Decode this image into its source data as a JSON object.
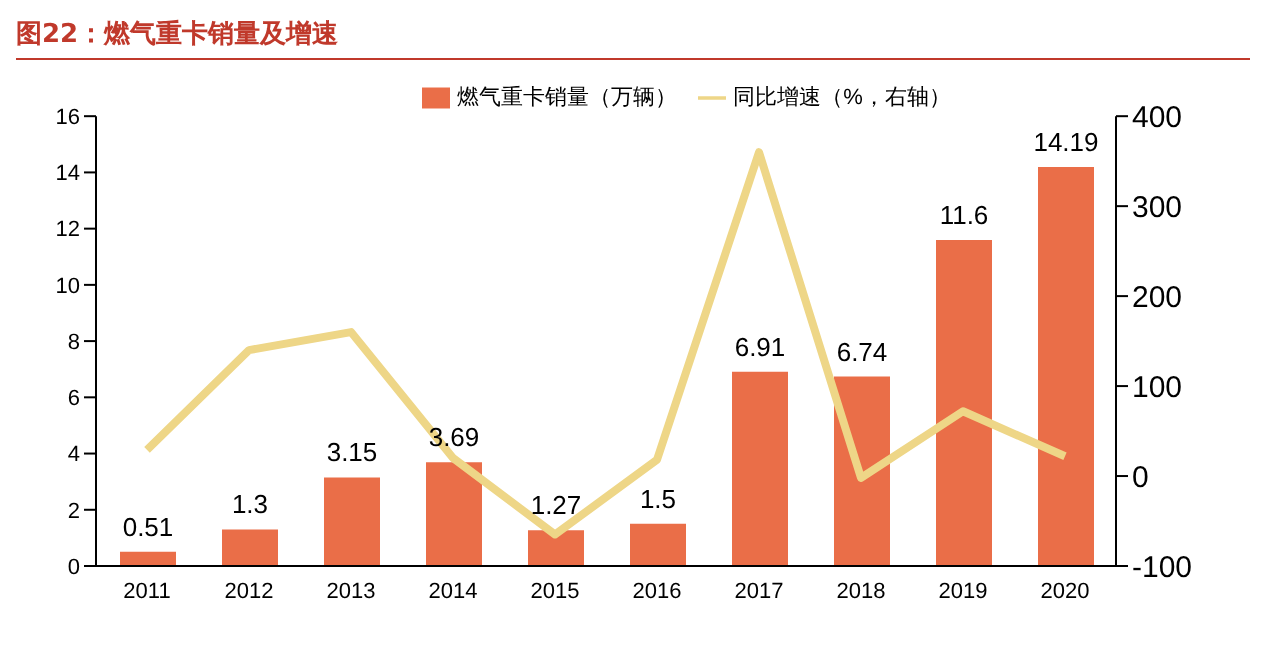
{
  "chart_data": {
    "type": "bar",
    "title": "图22：燃气重卡销量及增速",
    "categories": [
      "2011",
      "2012",
      "2013",
      "2014",
      "2015",
      "2016",
      "2017",
      "2018",
      "2019",
      "2020"
    ],
    "series": [
      {
        "name": "燃气重卡销量（万辆）",
        "color": "#ea6e48",
        "values": [
          0.51,
          1.3,
          3.15,
          3.69,
          1.27,
          1.5,
          6.91,
          6.74,
          11.6,
          14.19
        ],
        "value_labels": [
          "0.51",
          "1.3",
          "3.15",
          "3.69",
          "1.27",
          "1.5",
          "6.91",
          "6.74",
          "11.6",
          "14.19"
        ]
      },
      {
        "name": "同比增速（%，右轴）",
        "type": "line",
        "axis": "y2",
        "color": "#eed687",
        "values": [
          29,
          140,
          160,
          20,
          -65,
          18,
          360,
          -2,
          72,
          22
        ]
      }
    ],
    "ylim": [
      0,
      16
    ],
    "yticks": [
      0,
      2,
      4,
      6,
      8,
      10,
      12,
      14,
      16
    ],
    "y2lim": [
      -100,
      400
    ],
    "y2ticks": [
      -100,
      0,
      100,
      200,
      300,
      400
    ],
    "legend": "top",
    "marker": "none",
    "line_style": "solid"
  }
}
